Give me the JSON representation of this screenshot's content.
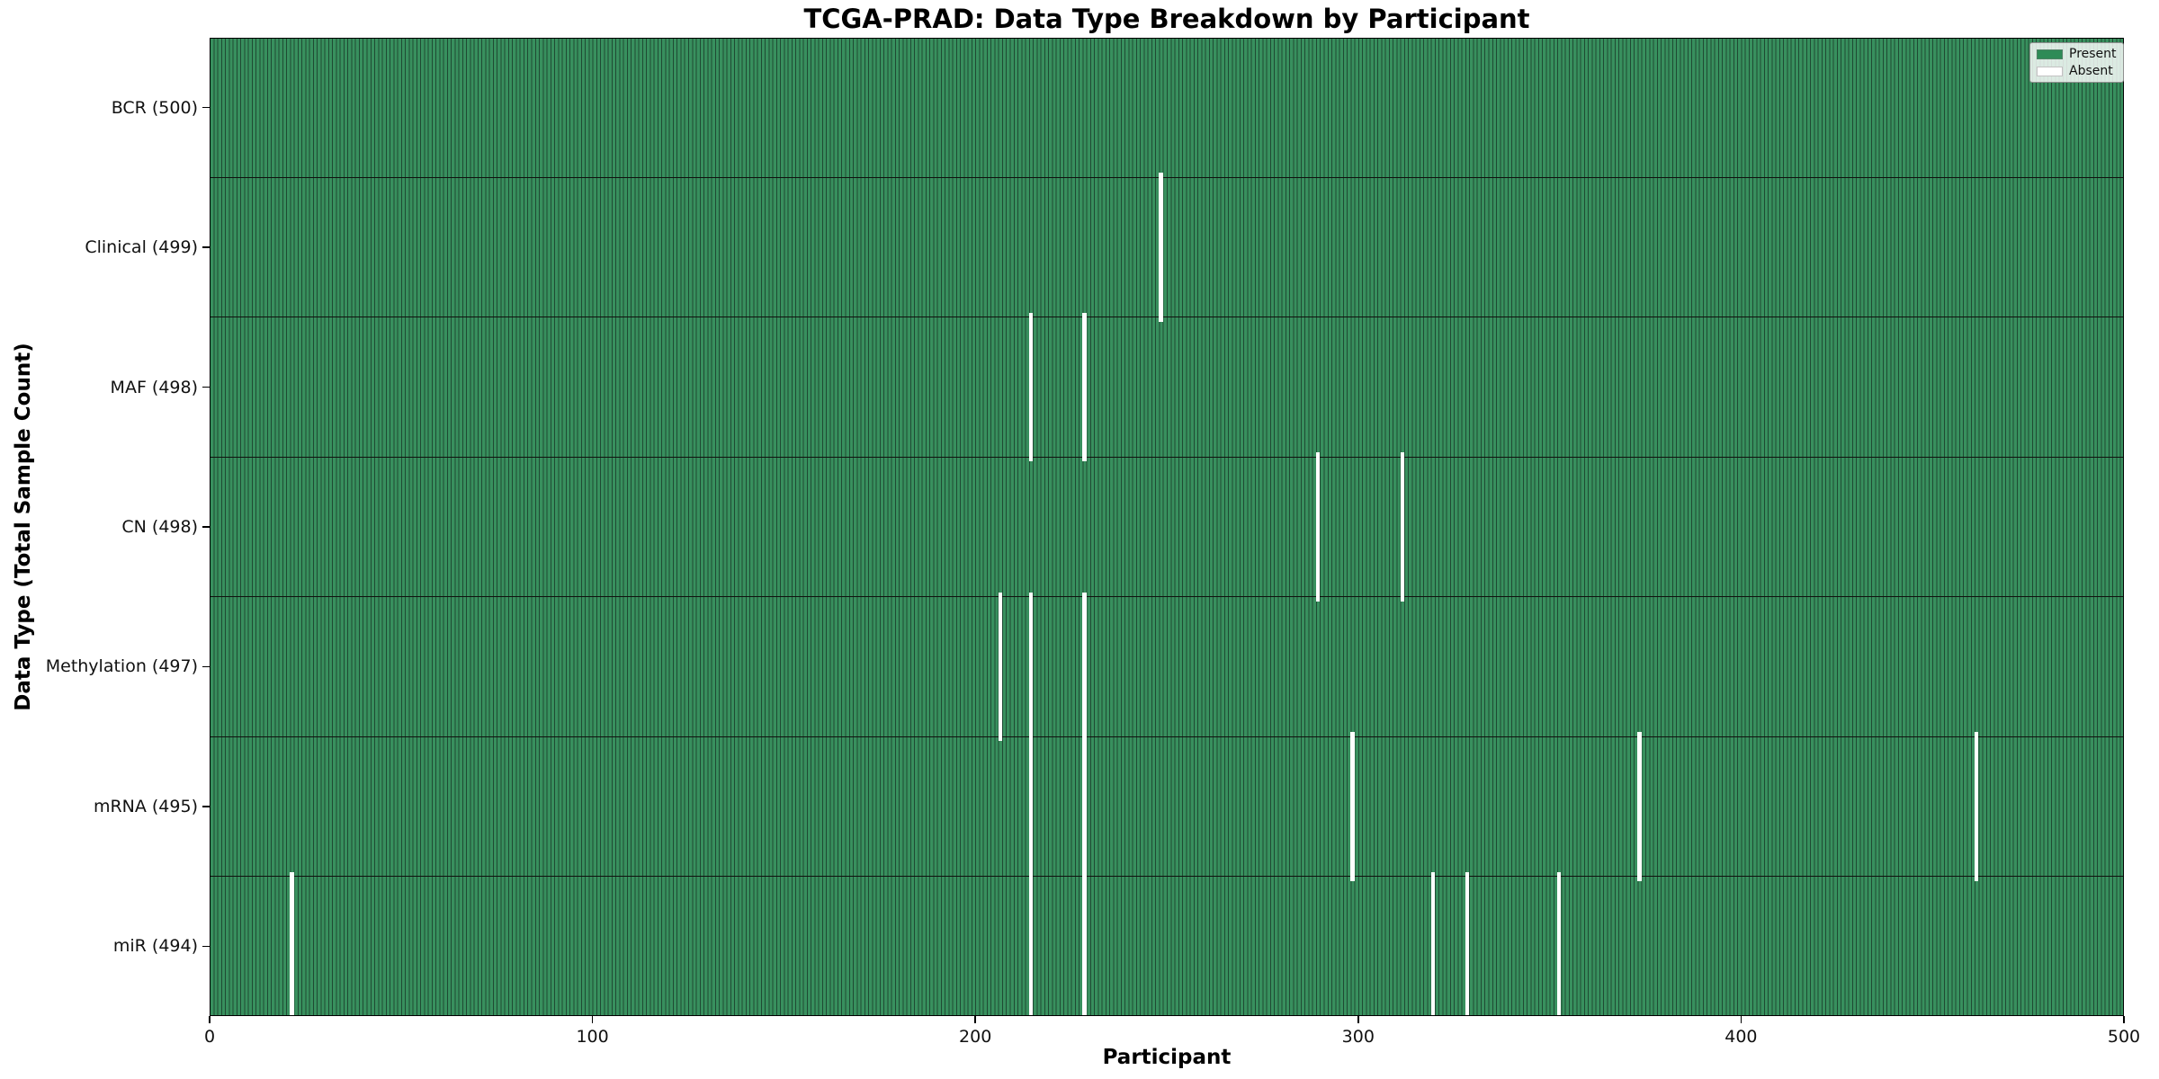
{
  "title": "TCGA-PRAD: Data Type Breakdown by Participant",
  "colors": {
    "present_fill": "#38905e",
    "cell_edge": "#1f4a33",
    "present_legend": "#2e8b57",
    "absent": "#ffffff",
    "row_separator": "#10120f"
  },
  "legend": {
    "present_label": "Present",
    "absent_label": "Absent"
  },
  "chart_data": {
    "type": "heatmap",
    "title": "TCGA-PRAD: Data Type Breakdown by Participant",
    "xlabel": "Participant",
    "ylabel": "Data Type (Total Sample Count)",
    "xlim": [
      0,
      500
    ],
    "x_ticks": [
      0,
      100,
      200,
      300,
      400,
      500
    ],
    "n_participants": 500,
    "grid": false,
    "legend_position": "upper right",
    "legend": [
      {
        "label": "Present",
        "color": "#2e8b57"
      },
      {
        "label": "Absent",
        "color": "#ffffff"
      }
    ],
    "rows": [
      {
        "label": "BCR (500)",
        "data_type": "BCR",
        "total": 500,
        "absent_participants": []
      },
      {
        "label": "Clinical (499)",
        "data_type": "Clinical",
        "total": 499,
        "absent_participants": [
          248
        ]
      },
      {
        "label": "MAF (498)",
        "data_type": "MAF",
        "total": 498,
        "absent_participants": [
          214,
          228
        ]
      },
      {
        "label": "CN (498)",
        "data_type": "CN",
        "total": 498,
        "absent_participants": [
          289,
          311
        ]
      },
      {
        "label": "Methylation (497)",
        "data_type": "Methylation",
        "total": 497,
        "absent_participants": [
          206,
          214,
          228
        ]
      },
      {
        "label": "mRNA (495)",
        "data_type": "mRNA",
        "total": 495,
        "absent_participants": [
          214,
          228,
          298,
          373,
          461
        ]
      },
      {
        "label": "miR (494)",
        "data_type": "miR",
        "total": 494,
        "absent_participants": [
          21,
          214,
          228,
          319,
          328,
          352
        ]
      }
    ]
  }
}
